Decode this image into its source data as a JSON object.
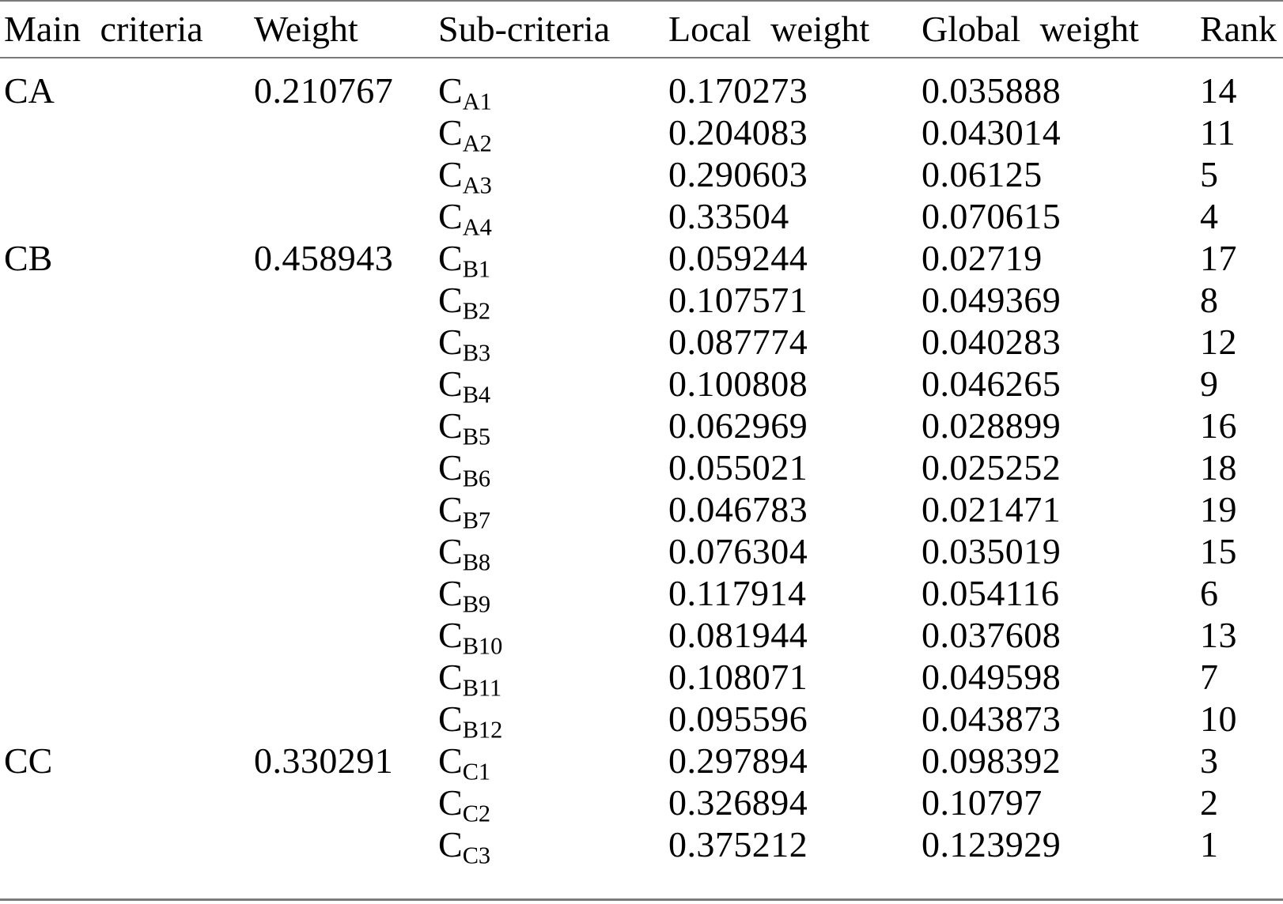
{
  "table": {
    "columns": [
      "Main criteria",
      "Weight",
      "Sub-criteria",
      "Local weight",
      "Global weight",
      "Rank"
    ],
    "rows": [
      {
        "main": "CA",
        "weight": "0.210767",
        "sub_base": "C",
        "sub_script": "A1",
        "local": "0.170273",
        "global": "0.035888",
        "rank": "14"
      },
      {
        "sub_base": "C",
        "sub_script": "A2",
        "local": "0.204083",
        "global": "0.043014",
        "rank": "11"
      },
      {
        "sub_base": "C",
        "sub_script": "A3",
        "local": "0.290603",
        "global": "0.06125",
        "rank": "5"
      },
      {
        "sub_base": "C",
        "sub_script": "A4",
        "local": "0.33504",
        "global": "0.070615",
        "rank": "4"
      },
      {
        "main": "CB",
        "weight": "0.458943",
        "sub_base": "C",
        "sub_script": "B1",
        "local": "0.059244",
        "global": "0.02719",
        "rank": "17"
      },
      {
        "sub_base": "C",
        "sub_script": "B2",
        "local": "0.107571",
        "global": "0.049369",
        "rank": "8"
      },
      {
        "sub_base": "C",
        "sub_script": "B3",
        "local": "0.087774",
        "global": "0.040283",
        "rank": "12"
      },
      {
        "sub_base": "C",
        "sub_script": "B4",
        "local": "0.100808",
        "global": "0.046265",
        "rank": "9"
      },
      {
        "sub_base": "C",
        "sub_script": "B5",
        "local": "0.062969",
        "global": "0.028899",
        "rank": "16"
      },
      {
        "sub_base": "C",
        "sub_script": "B6",
        "local": "0.055021",
        "global": "0.025252",
        "rank": "18"
      },
      {
        "sub_base": "C",
        "sub_script": "B7",
        "local": "0.046783",
        "global": "0.021471",
        "rank": "19"
      },
      {
        "sub_base": "C",
        "sub_script": "B8",
        "local": "0.076304",
        "global": "0.035019",
        "rank": "15"
      },
      {
        "sub_base": "C",
        "sub_script": "B9",
        "local": "0.117914",
        "global": "0.054116",
        "rank": "6"
      },
      {
        "sub_base": "C",
        "sub_script": "B10",
        "local": "0.081944",
        "global": "0.037608",
        "rank": "13"
      },
      {
        "sub_base": "C",
        "sub_script": "B11",
        "local": "0.108071",
        "global": "0.049598",
        "rank": "7"
      },
      {
        "sub_base": "C",
        "sub_script": "B12",
        "local": "0.095596",
        "global": "0.043873",
        "rank": "10"
      },
      {
        "main": "CC",
        "weight": "0.330291",
        "sub_base": "C",
        "sub_script": "C1",
        "local": "0.297894",
        "global": "0.098392",
        "rank": "3"
      },
      {
        "sub_base": "C",
        "sub_script": "C2",
        "local": "0.326894",
        "global": "0.10797",
        "rank": "2"
      },
      {
        "sub_base": "C",
        "sub_script": "C3",
        "local": "0.375212",
        "global": "0.123929",
        "rank": "1"
      }
    ]
  }
}
